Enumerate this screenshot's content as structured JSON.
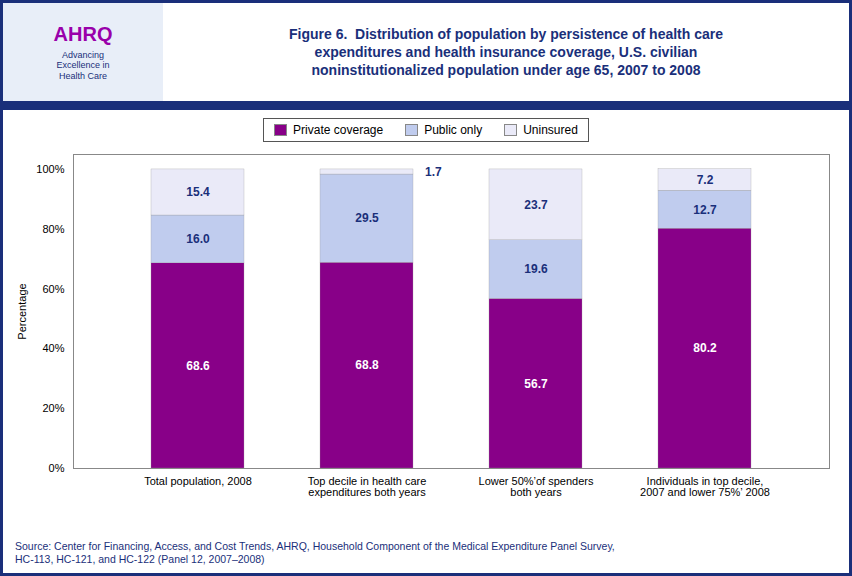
{
  "chart_data": {
    "type": "bar",
    "stacked": true,
    "data_labels": true,
    "grid": false,
    "legend": "top",
    "title": "Figure 6.  Distribution of population by persistence of health care\nexpenditures and health insurance coverage, U.S. civilian\nnoninstitutionalized population under age 65, 2007 to 2008",
    "ylabel": "Percentage",
    "source": "Source: Center for Financing, Access, and Cost Trends, AHRQ, Household Component of the Medical Expenditure Panel Survey,\nHC-113, HC-121, and HC-122 (Panel 12, 2007–2008)",
    "annotations": [
      "AHRQ",
      "Advancing\nExcellence in\nHealth Care"
    ],
    "categories": [
      "Total population, 2008",
      "Top decile in health care\nexpenditures both years",
      "Lower 50%’of spenders\nboth years",
      "Individuals in top decile,\n2007 and lower 75%’ 2008"
    ],
    "series": [
      {
        "name": "Private coverage",
        "color": "#880088",
        "values": [
          68.6,
          68.8,
          56.7,
          80.2
        ]
      },
      {
        "name": "Public only",
        "color": "#c0ccee",
        "values": [
          16.0,
          29.5,
          19.6,
          12.7
        ],
        "value_labels": [
          "16.0",
          "29.5",
          "19.6",
          "12.7"
        ]
      },
      {
        "name": "Uninsured",
        "color": "#eaeaf8",
        "values": [
          15.4,
          1.7,
          23.7,
          7.2
        ]
      }
    ],
    "ylim": [
      0,
      105
    ],
    "yticks": [
      {
        "value": 0,
        "label": "0%"
      },
      {
        "value": 20,
        "label": "20%"
      },
      {
        "value": 40,
        "label": "40%"
      },
      {
        "value": 60,
        "label": "60%"
      },
      {
        "value": 80,
        "label": "80%"
      },
      {
        "value": 100,
        "label": "100%"
      }
    ]
  }
}
